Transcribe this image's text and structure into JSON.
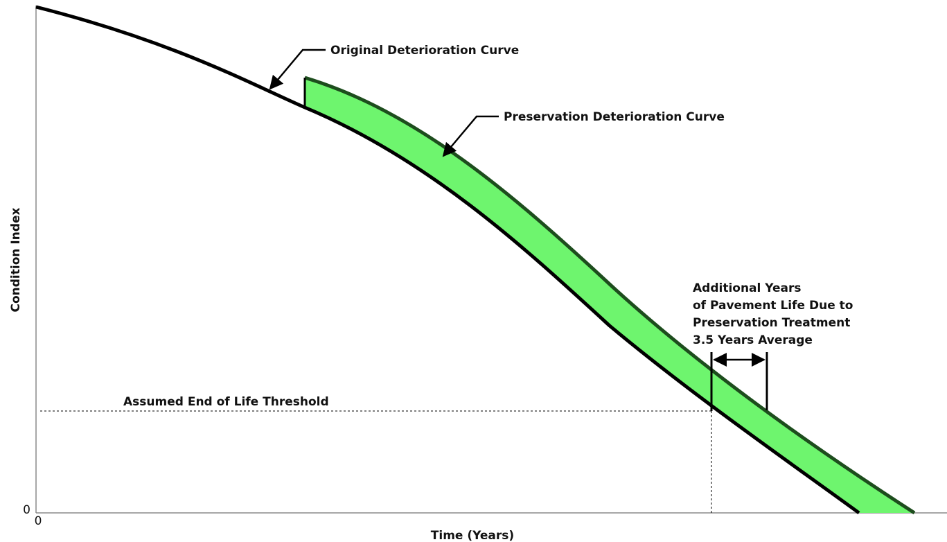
{
  "y_axis": {
    "label": "Condition Index",
    "tick": "0"
  },
  "x_axis": {
    "label": "Time (Years)",
    "tick": "0"
  },
  "annotations": {
    "original_curve": "Original Deterioration Curve",
    "preservation_curve": "Preservation Deterioration Curve",
    "threshold": "Assumed End of Life Threshold",
    "additional_years": [
      "Additional Years",
      "of Pavement Life Due to",
      "Preservation Treatment",
      "3.5 Years Average"
    ]
  }
}
